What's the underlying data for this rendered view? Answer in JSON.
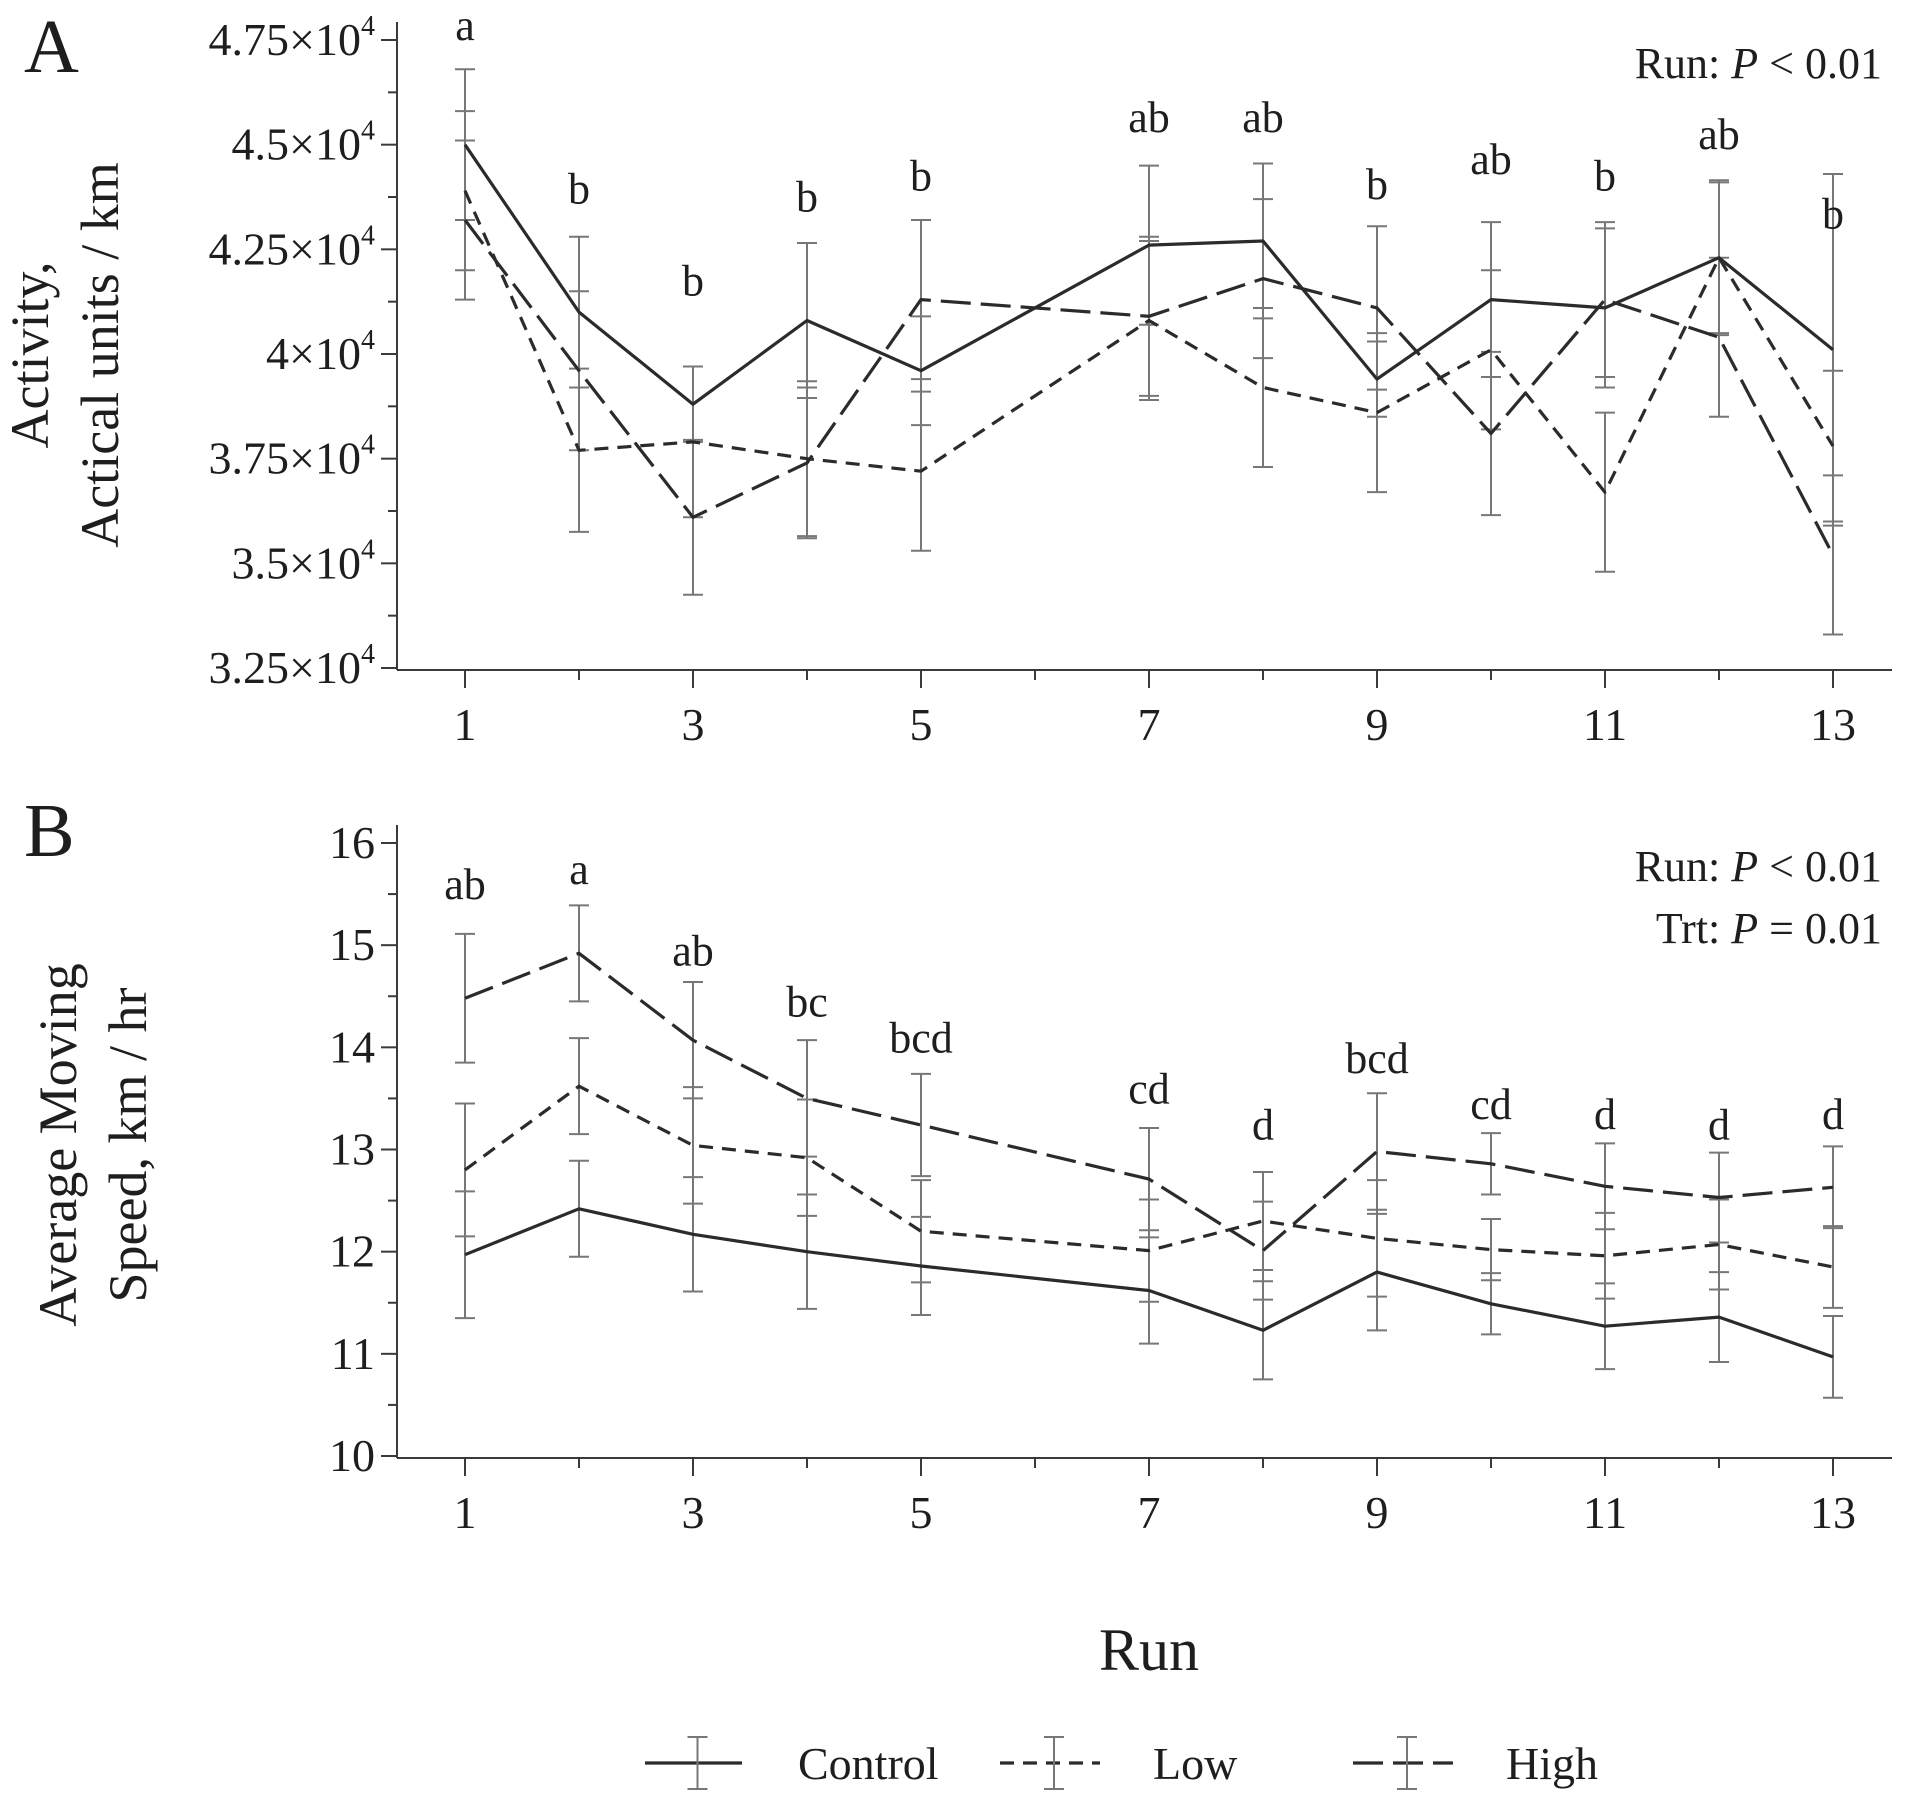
{
  "chart_data": [
    {
      "type": "line",
      "panel": "A",
      "ylabel_lines": [
        "Activity,",
        "Actical units / km"
      ],
      "xlabel": "",
      "yscale": "linear",
      "ylim": [
        32500,
        47500
      ],
      "xlim": [
        1,
        13
      ],
      "x_ticks": [
        1,
        3,
        5,
        7,
        9,
        11,
        13
      ],
      "x_tick_labels": [
        "1",
        "3",
        "5",
        "7",
        "9",
        "11",
        "13"
      ],
      "y_ticks": [
        {
          "value": 32500,
          "mantissa": "3.25×10",
          "exp": "4"
        },
        {
          "value": 35000,
          "mantissa": "3.5×10",
          "exp": "4"
        },
        {
          "value": 37500,
          "mantissa": "3.75×10",
          "exp": "4"
        },
        {
          "value": 40000,
          "mantissa": "4×10",
          "exp": "4"
        },
        {
          "value": 42500,
          "mantissa": "4.25×10",
          "exp": "4"
        },
        {
          "value": 45000,
          "mantissa": "4.5×10",
          "exp": "4"
        },
        {
          "value": 47500,
          "mantissa": "4.75×10",
          "exp": "4"
        }
      ],
      "stats": [
        {
          "label": "Run: ",
          "p": "P",
          "rel": " < 0.01"
        }
      ],
      "x": [
        1,
        2,
        3,
        4,
        5,
        7,
        8,
        9,
        10,
        11,
        12,
        13
      ],
      "series": [
        {
          "name": "Control",
          "style": "solid",
          "values": [
            45000,
            41000,
            38800,
            40800,
            39600,
            42600,
            42700,
            39400,
            41300,
            41100,
            42300,
            40100
          ],
          "errors": [
            1800,
            1800,
            900,
            1850,
            1300,
            1900,
            1850,
            900,
            1850,
            1900,
            1850,
            4200
          ]
        },
        {
          "name": "Low",
          "style": "dashed",
          "values": [
            43900,
            37700,
            37900,
            37500,
            37200,
            40800,
            39200,
            38600,
            40100,
            36700,
            42300,
            37800
          ],
          "errors": [
            1900,
            1950,
            1800,
            1850,
            1900,
            1900,
            1900,
            1900,
            1900,
            1900,
            1800,
            1800
          ]
        },
        {
          "name": "High",
          "style": "dash-long",
          "values": [
            43200,
            39600,
            36100,
            37400,
            41300,
            40900,
            41800,
            41100,
            38100,
            41300,
            40400,
            35200
          ],
          "errors": [
            1900,
            1900,
            1850,
            1800,
            1900,
            1900,
            1900,
            1950,
            1950,
            1850,
            1900,
            1900
          ]
        }
      ],
      "letters": [
        {
          "x": 1,
          "text": "a",
          "y": 47500
        },
        {
          "x": 2,
          "text": "b",
          "y": 43600
        },
        {
          "x": 3,
          "text": "b",
          "y": 41400
        },
        {
          "x": 4,
          "text": "b",
          "y": 43400
        },
        {
          "x": 5,
          "text": "b",
          "y": 43900
        },
        {
          "x": 7,
          "text": "ab",
          "y": 45300
        },
        {
          "x": 8,
          "text": "ab",
          "y": 45300
        },
        {
          "x": 9,
          "text": "b",
          "y": 43700
        },
        {
          "x": 10,
          "text": "ab",
          "y": 44300
        },
        {
          "x": 11,
          "text": "b",
          "y": 43900
        },
        {
          "x": 12,
          "text": "ab",
          "y": 44900
        },
        {
          "x": 13,
          "text": "b",
          "y": 43000
        }
      ]
    },
    {
      "type": "line",
      "panel": "B",
      "ylabel_lines": [
        "Average Moving",
        "Speed, km / hr"
      ],
      "xlabel": "Run",
      "yscale": "linear",
      "ylim": [
        10,
        16
      ],
      "xlim": [
        1,
        13
      ],
      "x_ticks": [
        1,
        3,
        5,
        7,
        9,
        11,
        13
      ],
      "x_tick_labels": [
        "1",
        "3",
        "5",
        "7",
        "9",
        "11",
        "13"
      ],
      "y_ticks": [
        {
          "value": 10,
          "mantissa": "10",
          "exp": ""
        },
        {
          "value": 11,
          "mantissa": "11",
          "exp": ""
        },
        {
          "value": 12,
          "mantissa": "12",
          "exp": ""
        },
        {
          "value": 13,
          "mantissa": "13",
          "exp": ""
        },
        {
          "value": 14,
          "mantissa": "14",
          "exp": ""
        },
        {
          "value": 15,
          "mantissa": "15",
          "exp": ""
        },
        {
          "value": 16,
          "mantissa": "16",
          "exp": ""
        }
      ],
      "stats": [
        {
          "label": "Run: ",
          "p": "P",
          "rel": " < 0.01"
        },
        {
          "label": "Trt: ",
          "p": "P",
          "rel": " = 0.01"
        }
      ],
      "x": [
        1,
        2,
        3,
        4,
        5,
        7,
        8,
        9,
        10,
        11,
        12,
        13
      ],
      "series": [
        {
          "name": "Control",
          "style": "solid",
          "values": [
            11.97,
            12.42,
            12.17,
            12.0,
            11.86,
            11.62,
            11.23,
            11.8,
            11.49,
            11.27,
            11.36,
            10.97
          ],
          "errors": [
            0.62,
            0.47,
            0.56,
            0.56,
            0.48,
            0.52,
            0.48,
            0.57,
            0.3,
            0.42,
            0.44,
            0.4
          ]
        },
        {
          "name": "Low",
          "style": "dashed",
          "values": [
            12.8,
            13.62,
            13.04,
            12.92,
            12.2,
            12.01,
            12.3,
            12.13,
            12.02,
            11.96,
            12.07,
            11.85
          ],
          "errors": [
            0.65,
            0.47,
            0.57,
            0.57,
            0.5,
            0.5,
            0.48,
            0.57,
            0.3,
            0.42,
            0.44,
            0.4
          ]
        },
        {
          "name": "High",
          "style": "dash-long",
          "values": [
            14.48,
            14.92,
            14.07,
            13.5,
            13.24,
            12.71,
            12.01,
            12.98,
            12.86,
            12.64,
            12.53,
            12.63
          ],
          "errors": [
            0.63,
            0.47,
            0.57,
            0.57,
            0.5,
            0.5,
            0.48,
            0.57,
            0.3,
            0.42,
            0.44,
            0.4
          ]
        }
      ],
      "letters": [
        {
          "x": 1,
          "text": "ab",
          "y": 15.45
        },
        {
          "x": 2,
          "text": "a",
          "y": 15.6
        },
        {
          "x": 3,
          "text": "ab",
          "y": 14.8
        },
        {
          "x": 4,
          "text": "bc",
          "y": 14.3
        },
        {
          "x": 5,
          "text": "bcd",
          "y": 13.95
        },
        {
          "x": 7,
          "text": "cd",
          "y": 13.45
        },
        {
          "x": 8,
          "text": "d",
          "y": 13.1
        },
        {
          "x": 9,
          "text": "bcd",
          "y": 13.75
        },
        {
          "x": 10,
          "text": "cd",
          "y": 13.3
        },
        {
          "x": 11,
          "text": "d",
          "y": 13.2
        },
        {
          "x": 12,
          "text": "d",
          "y": 13.1
        },
        {
          "x": 13,
          "text": "d",
          "y": 13.2
        }
      ]
    }
  ],
  "legend": [
    {
      "name": "Control",
      "style": "solid"
    },
    {
      "name": "Low",
      "style": "dashed"
    },
    {
      "name": "High",
      "style": "dash-long"
    }
  ],
  "colors": {
    "line": "#2b2b2b",
    "error_bar": "#777777",
    "axis": "#3a3a3a"
  }
}
